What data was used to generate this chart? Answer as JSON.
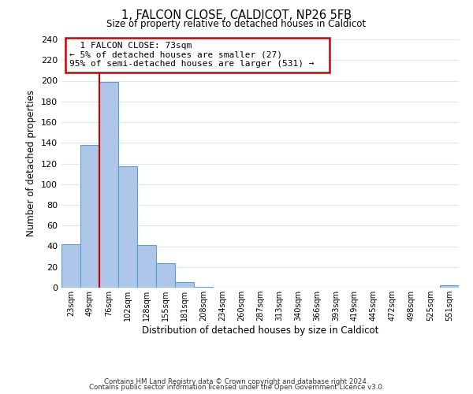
{
  "title": "1, FALCON CLOSE, CALDICOT, NP26 5FB",
  "subtitle": "Size of property relative to detached houses in Caldicot",
  "bar_labels": [
    "23sqm",
    "49sqm",
    "76sqm",
    "102sqm",
    "128sqm",
    "155sqm",
    "181sqm",
    "208sqm",
    "234sqm",
    "260sqm",
    "287sqm",
    "313sqm",
    "340sqm",
    "366sqm",
    "393sqm",
    "419sqm",
    "445sqm",
    "472sqm",
    "498sqm",
    "525sqm",
    "551sqm"
  ],
  "bar_heights": [
    42,
    138,
    199,
    117,
    41,
    24,
    5,
    1,
    0,
    0,
    0,
    0,
    0,
    0,
    0,
    0,
    0,
    0,
    0,
    0,
    2
  ],
  "bar_color": "#aec6e8",
  "bar_edge_color": "#5a9fd4",
  "xlabel": "Distribution of detached houses by size in Caldicot",
  "ylabel": "Number of detached properties",
  "ylim": [
    0,
    240
  ],
  "yticks": [
    0,
    20,
    40,
    60,
    80,
    100,
    120,
    140,
    160,
    180,
    200,
    220,
    240
  ],
  "vline_index": 2,
  "vline_color": "#cc0000",
  "annotation_title": "1 FALCON CLOSE: 73sqm",
  "annotation_line1": "← 5% of detached houses are smaller (27)",
  "annotation_line2": "95% of semi-detached houses are larger (531) →",
  "annotation_box_color": "#ffffff",
  "annotation_box_edge_color": "#cc0000",
  "footer1": "Contains HM Land Registry data © Crown copyright and database right 2024.",
  "footer2": "Contains public sector information licensed under the Open Government Licence v3.0.",
  "background_color": "#ffffff",
  "grid_color": "#dce8f0"
}
